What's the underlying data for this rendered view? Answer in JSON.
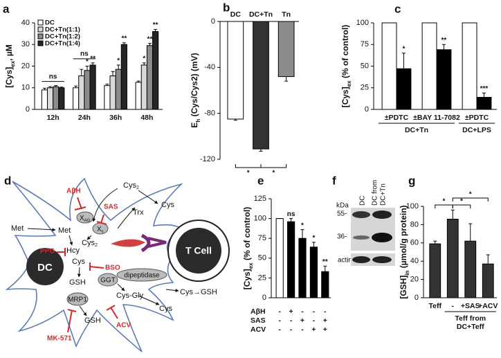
{
  "chart_data": [
    {
      "type": "bar",
      "panel": "a",
      "ylabel": [
        "[Cys]",
        "ex",
        ", µM"
      ],
      "categories": [
        "12h",
        "24h",
        "36h",
        "48h"
      ],
      "series": [
        {
          "name": "DC",
          "color": "#ffffff",
          "values": [
            9,
            10,
            11,
            12.5
          ],
          "errors": [
            0.8,
            0.8,
            0.7,
            0.6
          ],
          "significance": [
            null,
            null,
            null,
            null
          ]
        },
        {
          "name": "DC+Tn(1:1)",
          "color": "#d9d9d9",
          "values": [
            10,
            15.5,
            15.5,
            20.5
          ],
          "errors": [
            0.5,
            3,
            2,
            1
          ],
          "significance": [
            null,
            null,
            null,
            "*"
          ]
        },
        {
          "name": "DC+Tn(1:2)",
          "color": "#8c8c8c",
          "values": [
            10.5,
            18,
            18.5,
            29.5
          ],
          "errors": [
            0.5,
            2,
            2,
            1
          ],
          "significance": [
            null,
            "*",
            "*",
            "**"
          ]
        },
        {
          "name": "DC+Tn(1:4)",
          "color": "#262626",
          "values": [
            10,
            20.5,
            30,
            36
          ],
          "errors": [
            0.3,
            1,
            0.8,
            1
          ],
          "significance": [
            null,
            "**",
            "**",
            "**"
          ]
        }
      ],
      "group_labels": [
        "ns",
        "ns",
        null,
        null
      ],
      "ylim": [
        0,
        40
      ],
      "yticks": [
        0,
        10,
        20,
        30,
        40
      ]
    },
    {
      "type": "bar",
      "panel": "b",
      "ylabel": [
        "E",
        "h",
        " (Cys/Cys2) (mV)"
      ],
      "categories": [
        "DC",
        "DC+Tn",
        "Tn"
      ],
      "values": [
        -85,
        -111,
        -48
      ],
      "errors": [
        1,
        2,
        4
      ],
      "colors": [
        "#ffffff",
        "#333333",
        "#8c8c8c"
      ],
      "comparisons": [
        {
          "pair": [
            0,
            1
          ],
          "label": "*"
        },
        {
          "pair": [
            1,
            2
          ],
          "label": "*"
        }
      ],
      "ylim": [
        -120,
        0
      ],
      "yticks": [
        -120,
        -80,
        -40,
        0
      ]
    },
    {
      "type": "bar",
      "panel": "c",
      "ylabel": [
        "[Cys]",
        "ex",
        " (% of control)"
      ],
      "categories": [
        "±PDTC",
        "±BAY 11-7082",
        "±PDTC"
      ],
      "series": [
        {
          "color": "#ffffff",
          "values": [
            100,
            100,
            100
          ]
        },
        {
          "color": "#000000",
          "values": [
            47,
            69,
            14
          ],
          "errors": [
            18,
            6,
            5
          ],
          "significance": [
            "*",
            "**",
            "***"
          ]
        }
      ],
      "groups": [
        {
          "label": "DC+Tn",
          "categories": [
            0,
            1
          ]
        },
        {
          "label": "DC+LPS",
          "categories": [
            2
          ]
        }
      ],
      "ylim": [
        0,
        100
      ],
      "yticks": [
        0,
        25,
        50,
        75,
        100
      ]
    },
    {
      "type": "bar",
      "panel": "e",
      "ylabel": [
        "[Cys]",
        "ex",
        " (% of control)"
      ],
      "values": [
        100,
        96,
        75,
        64,
        33
      ],
      "errors": [
        0,
        4,
        11,
        6,
        7
      ],
      "colors": [
        "#ffffff",
        "#000000",
        "#000000",
        "#000000",
        "#000000"
      ],
      "significance": [
        null,
        "ns",
        "*",
        "*",
        "**"
      ],
      "treatments": [
        {
          "name": "AβH",
          "signs": [
            "-",
            "+",
            "-",
            "-",
            "-"
          ]
        },
        {
          "name": "SAS",
          "signs": [
            "-",
            "-",
            "+",
            "-",
            "+"
          ]
        },
        {
          "name": "ACV",
          "signs": [
            "-",
            "-",
            "-",
            "+",
            "+"
          ]
        }
      ],
      "ylim": [
        0,
        125
      ],
      "yticks": [
        0,
        25,
        50,
        75,
        100,
        125
      ]
    },
    {
      "type": "bar",
      "panel": "g",
      "ylabel": [
        "[GSH]",
        "in",
        " (µmol/g protein)"
      ],
      "categories": [
        "Teff",
        "-",
        "+SAS",
        "+ACV"
      ],
      "values": [
        59,
        86,
        62,
        37
      ],
      "errors": [
        3,
        10,
        19,
        10
      ],
      "color": "#333333",
      "groups": [
        {
          "label": [
            "Teff from",
            "DC+Teff"
          ],
          "categories": [
            1,
            2,
            3
          ]
        }
      ],
      "comparisons": [
        {
          "pair": [
            0,
            1
          ],
          "label": "*"
        },
        {
          "pair": [
            1,
            2
          ],
          "label": "*"
        },
        {
          "pair": [
            1,
            3
          ],
          "label": "*"
        }
      ],
      "ylim": [
        0,
        100
      ],
      "yticks": [
        0,
        20,
        40,
        60,
        80,
        100
      ]
    }
  ],
  "diagram": {
    "panel": "d",
    "cys2_top": [
      "Cys",
      "2"
    ],
    "cys_out": "Cys",
    "abh": "AβH",
    "sas": "SAS",
    "xag": [
      "X",
      "AG"
    ],
    "xc": [
      "X",
      "c"
    ],
    "trx": "Trx",
    "met_out": "Met",
    "met_in": "Met",
    "cys2_in": [
      "Cys",
      "2"
    ],
    "hcy": "Hcy",
    "ppg": "PPG",
    "dc": "DC",
    "cys_in": "Cys",
    "bso": "BSO",
    "gsh_in": "GSH",
    "ggt": "GGT",
    "dipeptidase": "dipeptidase",
    "cys_gsh": "Cys→GSH",
    "tcell": "T Cell",
    "mrp1": "MRP1",
    "cysgly": "Cys-Gly",
    "cys_ex": "Cys",
    "acv": "ACV",
    "gsh_out": "GSH",
    "mk571": "MK-571"
  },
  "blot": {
    "panel": "f",
    "kda": "kDa",
    "m55": "55-",
    "m36": "36-",
    "lane1": "DC",
    "lane2": [
      "DC from",
      "DC+Tn"
    ],
    "actin": "actin"
  }
}
